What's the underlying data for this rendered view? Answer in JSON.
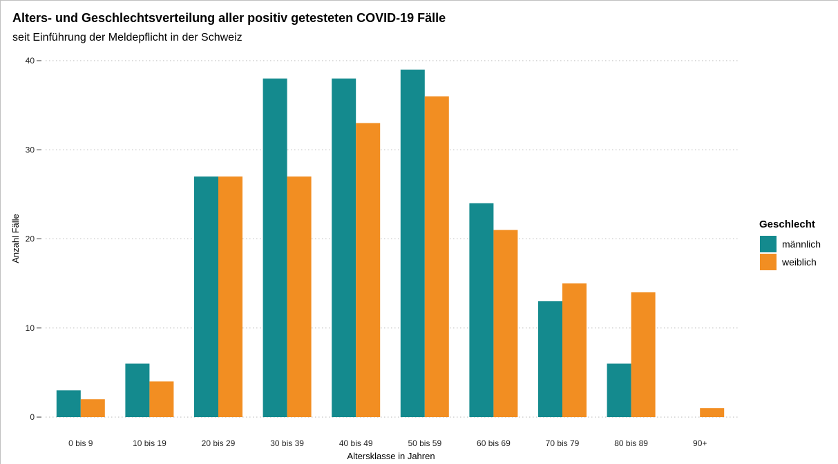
{
  "chart_data": {
    "type": "bar",
    "title": "Alters- und Geschlechtsverteilung aller positiv getesteten COVID-19 Fälle",
    "subtitle": "seit Einführung der Meldepflicht in der Schweiz",
    "xlabel": "Altersklasse in Jahren",
    "ylabel": "Anzahl Fälle",
    "ylim": [
      0,
      40
    ],
    "yticks": [
      0,
      10,
      20,
      30,
      40
    ],
    "grid": "horizontal dotted",
    "categories": [
      "0 bis 9",
      "10 bis 19",
      "20 bis 29",
      "30 bis 39",
      "40 bis 49",
      "50 bis 59",
      "60 bis 69",
      "70 bis 79",
      "80 bis 89",
      "90+"
    ],
    "series": [
      {
        "name": "männlich",
        "color": "#148a8e",
        "values": [
          3,
          6,
          27,
          38,
          38,
          39,
          24,
          13,
          6,
          0
        ]
      },
      {
        "name": "weiblich",
        "color": "#f28e22",
        "values": [
          2,
          4,
          27,
          27,
          33,
          36,
          21,
          15,
          14,
          1
        ]
      }
    ],
    "legend": {
      "title": "Geschlecht",
      "position": "right"
    }
  }
}
